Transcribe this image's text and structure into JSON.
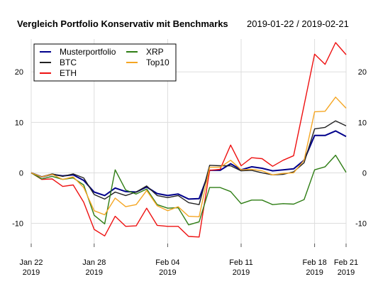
{
  "chart_data": {
    "type": "line",
    "title": "Vergleich Portfolio Konservativ mit Benchmarks",
    "subtitle": "2019-01-22 / 2019-02-21",
    "x": [
      "2019-01-22",
      "2019-01-23",
      "2019-01-24",
      "2019-01-25",
      "2019-01-26",
      "2019-01-27",
      "2019-01-28",
      "2019-01-29",
      "2019-01-30",
      "2019-01-31",
      "2019-02-01",
      "2019-02-02",
      "2019-02-03",
      "2019-02-04",
      "2019-02-05",
      "2019-02-06",
      "2019-02-07",
      "2019-02-08",
      "2019-02-09",
      "2019-02-10",
      "2019-02-11",
      "2019-02-12",
      "2019-02-13",
      "2019-02-14",
      "2019-02-15",
      "2019-02-16",
      "2019-02-17",
      "2019-02-18",
      "2019-02-19",
      "2019-02-20",
      "2019-02-21"
    ],
    "x_ticks": [
      {
        "date": "2019-01-22",
        "label1": "Jan 22",
        "label2": "2019"
      },
      {
        "date": "2019-01-28",
        "label1": "Jan 28",
        "label2": "2019"
      },
      {
        "date": "2019-02-04",
        "label1": "Feb 04",
        "label2": "2019"
      },
      {
        "date": "2019-02-11",
        "label1": "Feb 11",
        "label2": "2019"
      },
      {
        "date": "2019-02-18",
        "label1": "Feb 18",
        "label2": "2019"
      },
      {
        "date": "2019-02-21",
        "label1": "Feb 21",
        "label2": "2019"
      }
    ],
    "y_ticks": [
      -10,
      0,
      10,
      20
    ],
    "y_tick_labels": [
      "-10",
      "0",
      "10",
      "20"
    ],
    "ylim": [
      -14,
      26.5
    ],
    "grid": true,
    "legend_position": "top-left",
    "series": [
      {
        "name": "Musterportfolio",
        "color": "#00008b",
        "values": [
          0,
          -0.8,
          -0.3,
          -0.6,
          -0.4,
          -1.5,
          -3.8,
          -4.5,
          -3,
          -3.7,
          -3.8,
          -2.8,
          -4.1,
          -4.5,
          -4.2,
          -5.2,
          -5.1,
          0.5,
          0.5,
          1.8,
          0.6,
          1.2,
          0.9,
          0.4,
          0.6,
          0.8,
          2.5,
          7.4,
          7.4,
          8.3,
          7.2
        ]
      },
      {
        "name": "BTC",
        "color": "#222222",
        "values": [
          0,
          -0.8,
          -0.2,
          -0.7,
          -0.2,
          -1.0,
          -4.3,
          -5.2,
          -3.8,
          -4.5,
          -3.8,
          -2.6,
          -4.5,
          -4.9,
          -4.5,
          -5.9,
          -6.3,
          1.5,
          1.4,
          1.4,
          0.4,
          0.5,
          0,
          -0.4,
          -0.3,
          0.2,
          2.0,
          8.7,
          9,
          10.3,
          9.3
        ]
      },
      {
        "name": "ETH",
        "color": "#ee1111",
        "values": [
          0,
          -1.3,
          -1.2,
          -2.7,
          -2.4,
          -5.8,
          -11.2,
          -12.5,
          -8.6,
          -10.6,
          -10.5,
          -7.0,
          -10.4,
          -10.6,
          -10.6,
          -12.6,
          -12.7,
          0.5,
          0.7,
          5.5,
          1.4,
          3,
          2.8,
          1.3,
          2.5,
          3.4,
          13.4,
          23.5,
          21.5,
          25.8,
          23.4
        ]
      },
      {
        "name": "XRP",
        "color": "#2e7d14",
        "values": [
          0,
          -1.2,
          -0.7,
          -1.3,
          -1.0,
          -2.4,
          -8.4,
          -10.1,
          0.6,
          -3.4,
          -4.2,
          -3.2,
          -6.3,
          -7,
          -6.9,
          -10.3,
          -9.7,
          -2.9,
          -2.9,
          -3.7,
          -6.1,
          -5.4,
          -5.4,
          -6.3,
          -6.1,
          -6.2,
          -5.3,
          0.6,
          1.2,
          3.5,
          0.1
        ]
      },
      {
        "name": "Top10",
        "color": "#f5a623",
        "values": [
          0,
          -0.8,
          -0.3,
          -1.3,
          -0.8,
          -2.9,
          -7.5,
          -8.3,
          -5,
          -6.7,
          -6.3,
          -3.5,
          -6.5,
          -7.5,
          -6.7,
          -8.6,
          -8.7,
          1.1,
          1.1,
          2.5,
          0.6,
          0.7,
          0.4,
          -0.4,
          -0.1,
          0,
          2.5,
          12.1,
          12.2,
          15,
          12.8
        ]
      }
    ]
  }
}
